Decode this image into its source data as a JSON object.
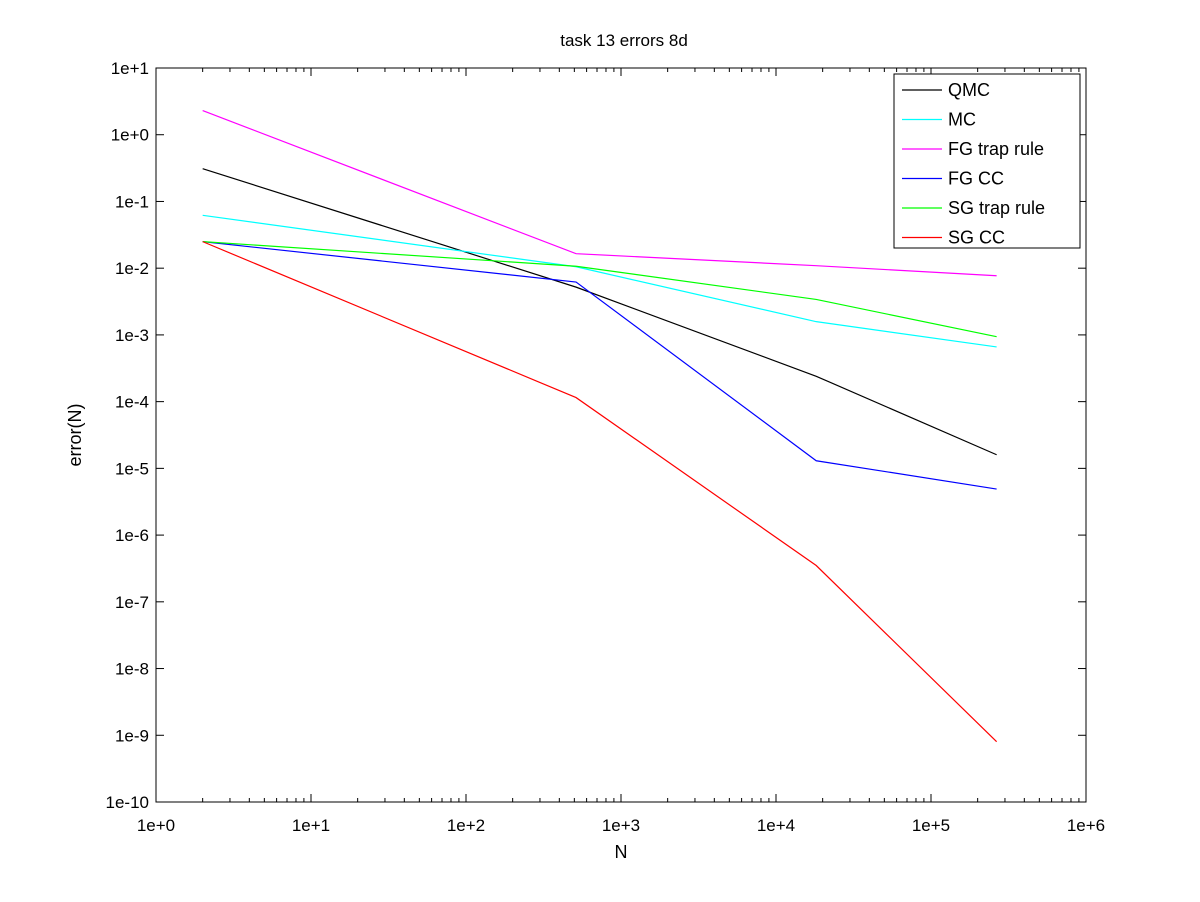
{
  "chart_data": {
    "type": "line",
    "title": "task 13 errors 8d",
    "xlabel": "N",
    "ylabel": "error(N)",
    "x_scale": "log",
    "y_scale": "log",
    "xlim": [
      1,
      1000000
    ],
    "ylim": [
      1e-10,
      10
    ],
    "x_ticks": [
      1,
      10,
      100,
      1000,
      10000,
      100000,
      1000000
    ],
    "x_tick_labels": [
      "1e+0",
      "1e+1",
      "1e+2",
      "1e+3",
      "1e+4",
      "1e+5",
      "1e+6"
    ],
    "y_ticks": [
      1e-10,
      1e-09,
      1e-08,
      1e-07,
      1e-06,
      1e-05,
      0.0001,
      0.001,
      0.01,
      0.1,
      1,
      10
    ],
    "y_tick_labels": [
      "1e-10",
      "1e-9",
      "1e-8",
      "1e-7",
      "1e-6",
      "1e-5",
      "1e-4",
      "1e-3",
      "1e-2",
      "1e-1",
      "1e+0",
      "1e+1"
    ],
    "grid": false,
    "legend_position": "top-right",
    "x": [
      2,
      513,
      18177,
      265089
    ],
    "series": [
      {
        "name": "QMC",
        "color": "#000000",
        "values": [
          0.31,
          0.0052,
          0.00024,
          1.6e-05
        ]
      },
      {
        "name": "MC",
        "color": "#00ffff",
        "values": [
          0.062,
          0.0105,
          0.00158,
          0.00066
        ]
      },
      {
        "name": "FG trap rule",
        "color": "#ff00ff",
        "values": [
          2.3,
          0.0165,
          0.0109,
          0.0077
        ]
      },
      {
        "name": "FG CC",
        "color": "#0000ff",
        "values": [
          0.025,
          0.0062,
          1.3e-05,
          4.9e-06
        ]
      },
      {
        "name": "SG trap rule",
        "color": "#00ff00",
        "values": [
          0.025,
          0.0107,
          0.0034,
          0.00094
        ]
      },
      {
        "name": "SG CC",
        "color": "#ff0000",
        "values": [
          0.025,
          0.000115,
          3.5e-07,
          8e-10
        ]
      }
    ]
  }
}
